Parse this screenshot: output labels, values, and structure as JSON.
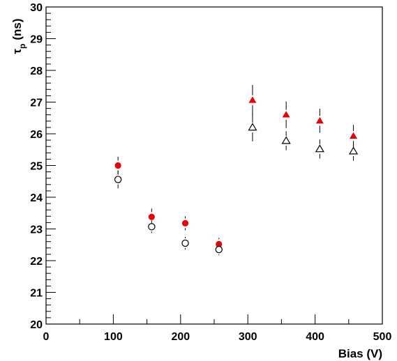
{
  "chart_data": {
    "type": "scatter",
    "title": "",
    "xlabel": "Bias (V)",
    "ylabel_symbol": "τ",
    "ylabel_subscript": "p",
    "ylabel_unit": "(ns)",
    "xlim": [
      0,
      500
    ],
    "ylim": [
      20,
      30
    ],
    "x_ticks": [
      0,
      100,
      200,
      300,
      400,
      500
    ],
    "y_ticks": [
      20,
      21,
      22,
      23,
      24,
      25,
      26,
      27,
      28,
      29,
      30
    ],
    "grid": false,
    "series": [
      {
        "marker": "filled-circle",
        "color": "#e8000b",
        "points": [
          {
            "x": 107,
            "y": 25.0,
            "err": 0.28
          },
          {
            "x": 157,
            "y": 23.38,
            "err": 0.26
          },
          {
            "x": 207,
            "y": 23.18,
            "err": 0.22
          },
          {
            "x": 257,
            "y": 22.52,
            "err": 0.2
          }
        ]
      },
      {
        "marker": "open-circle",
        "color": "#000000",
        "points": [
          {
            "x": 107,
            "y": 24.56,
            "err": 0.28
          },
          {
            "x": 157,
            "y": 23.07,
            "err": 0.2
          },
          {
            "x": 207,
            "y": 22.55,
            "err": 0.2
          },
          {
            "x": 257,
            "y": 22.35,
            "err": 0.18
          }
        ]
      },
      {
        "marker": "filled-triangle",
        "color": "#e8000b",
        "points": [
          {
            "x": 307,
            "y": 27.06,
            "err": 0.48
          },
          {
            "x": 357,
            "y": 26.6,
            "err": 0.42
          },
          {
            "x": 407,
            "y": 26.41,
            "err": 0.38
          },
          {
            "x": 457,
            "y": 25.93,
            "err": 0.35
          }
        ]
      },
      {
        "marker": "open-triangle",
        "color": "#000000",
        "points": [
          {
            "x": 307,
            "y": 26.2,
            "err": 0.44
          },
          {
            "x": 357,
            "y": 25.78,
            "err": 0.3
          },
          {
            "x": 407,
            "y": 25.52,
            "err": 0.3
          },
          {
            "x": 457,
            "y": 25.45,
            "err": 0.3
          }
        ]
      }
    ]
  }
}
